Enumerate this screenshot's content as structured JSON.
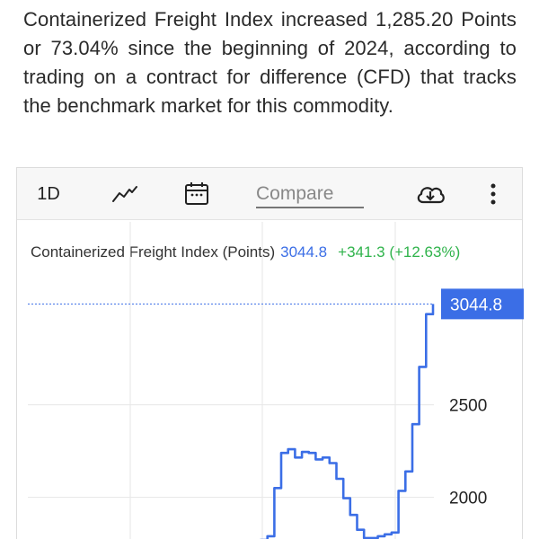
{
  "article": {
    "text": "Containerized Freight Index increased 1,285.20 Points or 73.04% since the beginning of 2024, according to trading on a contract for difference (CFD) that tracks the benchmark market for this commodity."
  },
  "toolbar": {
    "interval_label": "1D",
    "line_icon": "line-chart-icon",
    "calendar_icon": "calendar-icon",
    "compare_placeholder": "Compare",
    "download_icon": "cloud-download-icon",
    "more_icon": "more-vertical-icon"
  },
  "legend": {
    "name": "Containerized Freight Index (Points)",
    "value": "3044.8",
    "change": "+341.3 (+12.63%)"
  },
  "colors": {
    "line": "#3b6ee6",
    "change": "#2fb34b",
    "grid": "#e6e6e6",
    "price_tag_bg": "#3b6ee6"
  },
  "chart_data": {
    "type": "line",
    "series": [
      {
        "values": [
          1770,
          1790,
          2050,
          2240,
          2260,
          2215,
          2245,
          2240,
          2205,
          2215,
          2185,
          2100,
          1995,
          1905,
          1825,
          1780,
          1780,
          1790,
          1800,
          1810,
          2035,
          2140,
          2395,
          2705,
          2990,
          3044.8
        ]
      }
    ],
    "last_value": 3044.8,
    "last_value_label": "3044.8",
    "yticks": [
      2000,
      2500
    ],
    "ylim": [
      1770,
      3100
    ],
    "grid": true
  }
}
